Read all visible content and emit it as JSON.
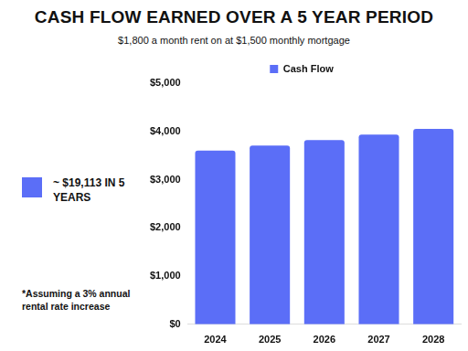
{
  "chart_data": {
    "type": "bar",
    "title": "CASH FLOW EARNED OVER A 5 YEAR PERIOD",
    "subtitle": "$1,800 a month rent on at $1,500 monthly mortgage",
    "annotations": [
      "~ $19,113 IN 5 YEARS",
      "*Assuming a 3% annual rental rate increase"
    ],
    "categories": [
      "2024",
      "2025",
      "2026",
      "2027",
      "2028"
    ],
    "series": [
      {
        "name": "Cash Flow",
        "color": "#5b6ef7",
        "values": [
          3600,
          3708,
          3819,
          3934,
          4052
        ]
      }
    ],
    "ylim": [
      0,
      5000
    ],
    "yticks": [
      {
        "value": 0,
        "label": "$0"
      },
      {
        "value": 1000,
        "label": "$1,000"
      },
      {
        "value": 2000,
        "label": "$2,000"
      },
      {
        "value": 3000,
        "label": "$3,000"
      },
      {
        "value": 4000,
        "label": "$4,000"
      },
      {
        "value": 5000,
        "label": "$5,000"
      }
    ],
    "grid": false,
    "legend": "top"
  }
}
